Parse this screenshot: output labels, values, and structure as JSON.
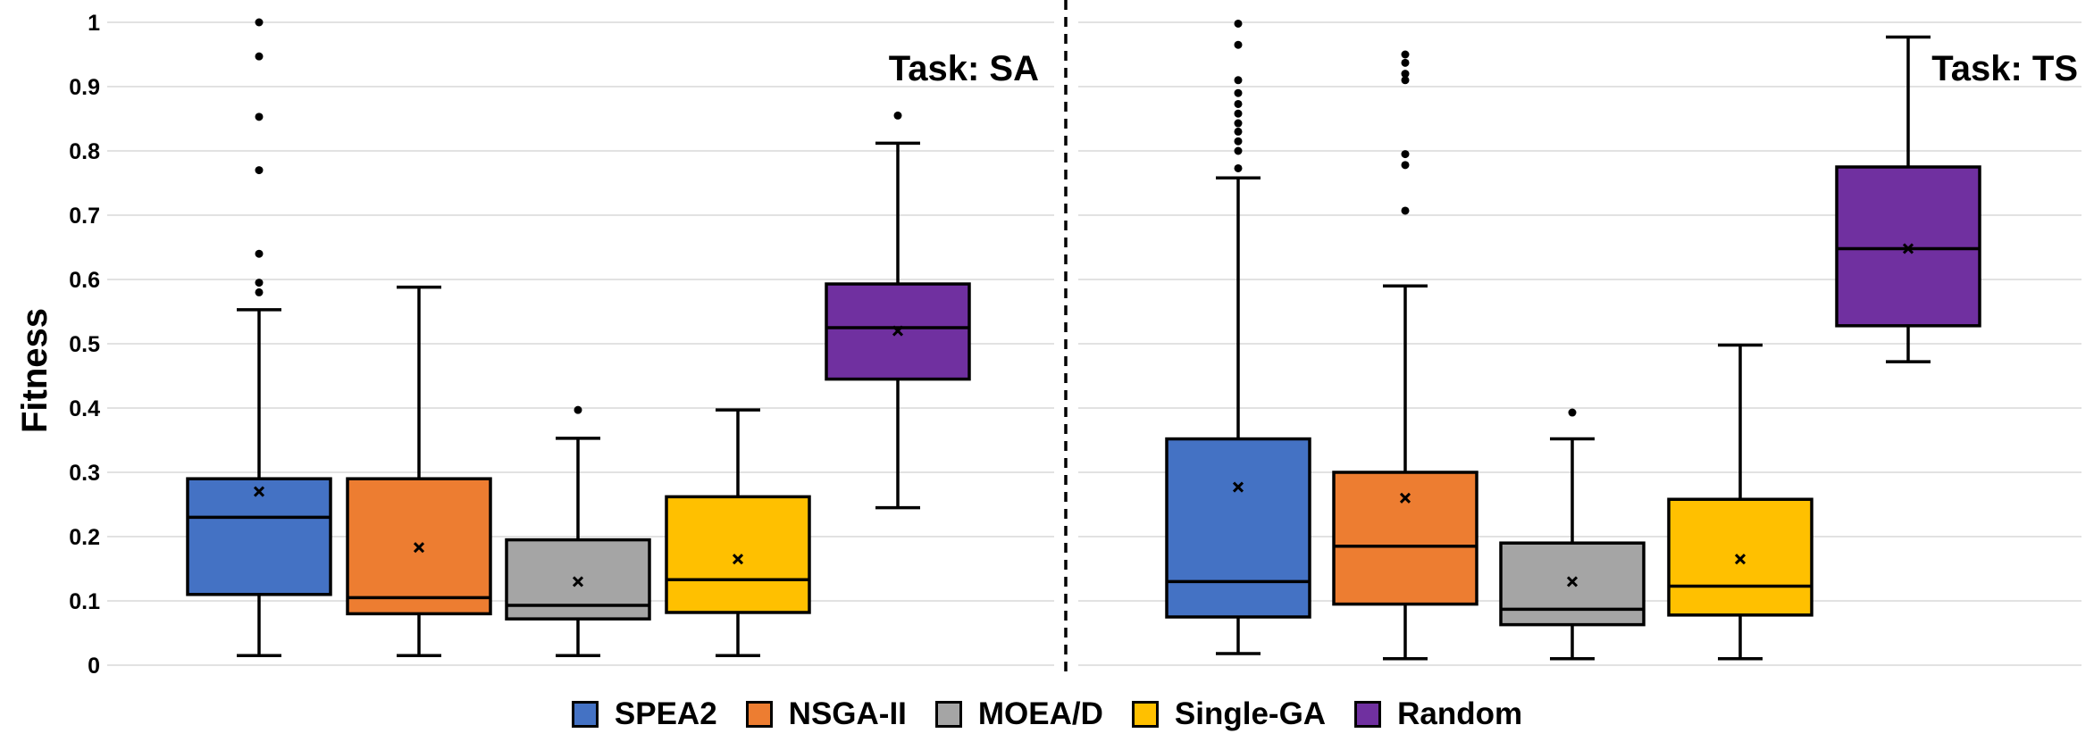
{
  "chart_data": [
    {
      "type": "box",
      "title": "Task: SA",
      "ylabel": "Fitness",
      "ylim": [
        0,
        1
      ],
      "yticks": [
        "0",
        "0.1",
        "0.2",
        "0.3",
        "0.4",
        "0.5",
        "0.6",
        "0.7",
        "0.8",
        "0.9",
        "1"
      ],
      "grid": true,
      "series": [
        {
          "name": "SPEA2",
          "color": "#4472C4",
          "whisker_low": 0.015,
          "q1": 0.11,
          "median": 0.23,
          "q3": 0.29,
          "whisker_high": 0.553,
          "mean": 0.27,
          "outliers": [
            0.58,
            0.595,
            0.64,
            0.77,
            0.853,
            0.947,
            1.0
          ]
        },
        {
          "name": "NSGA-II",
          "color": "#ED7D31",
          "whisker_low": 0.015,
          "q1": 0.08,
          "median": 0.105,
          "q3": 0.29,
          "whisker_high": 0.588,
          "mean": 0.183,
          "outliers": []
        },
        {
          "name": "MOEA/D",
          "color": "#A5A5A5",
          "whisker_low": 0.015,
          "q1": 0.072,
          "median": 0.093,
          "q3": 0.195,
          "whisker_high": 0.353,
          "mean": 0.13,
          "outliers": [
            0.397
          ]
        },
        {
          "name": "Single-GA",
          "color": "#FFC000",
          "whisker_low": 0.015,
          "q1": 0.082,
          "median": 0.133,
          "q3": 0.262,
          "whisker_high": 0.397,
          "mean": 0.165,
          "outliers": []
        },
        {
          "name": "Random",
          "color": "#7030A0",
          "whisker_low": 0.245,
          "q1": 0.445,
          "median": 0.525,
          "q3": 0.593,
          "whisker_high": 0.812,
          "mean": 0.52,
          "outliers": [
            0.855
          ]
        }
      ]
    },
    {
      "type": "box",
      "title": "Task: TS",
      "ylim": [
        0,
        1
      ],
      "grid": true,
      "series": [
        {
          "name": "SPEA2",
          "color": "#4472C4",
          "whisker_low": 0.018,
          "q1": 0.075,
          "median": 0.13,
          "q3": 0.352,
          "whisker_high": 0.758,
          "mean": 0.277,
          "outliers": [
            0.773,
            0.8,
            0.815,
            0.83,
            0.843,
            0.858,
            0.873,
            0.89,
            0.91,
            0.965,
            0.998
          ]
        },
        {
          "name": "NSGA-II",
          "color": "#ED7D31",
          "whisker_low": 0.01,
          "q1": 0.095,
          "median": 0.185,
          "q3": 0.3,
          "whisker_high": 0.59,
          "mean": 0.26,
          "outliers": [
            0.707,
            0.778,
            0.795,
            0.91,
            0.92,
            0.937,
            0.95
          ]
        },
        {
          "name": "MOEA/D",
          "color": "#A5A5A5",
          "whisker_low": 0.01,
          "q1": 0.063,
          "median": 0.087,
          "q3": 0.19,
          "whisker_high": 0.352,
          "mean": 0.13,
          "outliers": [
            0.393
          ]
        },
        {
          "name": "Single-GA",
          "color": "#FFC000",
          "whisker_low": 0.01,
          "q1": 0.078,
          "median": 0.123,
          "q3": 0.258,
          "whisker_high": 0.498,
          "mean": 0.165,
          "outliers": []
        },
        {
          "name": "Random",
          "color": "#7030A0",
          "whisker_low": 0.472,
          "q1": 0.528,
          "median": 0.648,
          "q3": 0.775,
          "whisker_high": 0.977,
          "mean": 0.648,
          "outliers": []
        }
      ]
    }
  ],
  "legend": [
    {
      "label": "SPEA2",
      "color": "#4472C4"
    },
    {
      "label": "NSGA-II",
      "color": "#ED7D31"
    },
    {
      "label": "MOEA/D",
      "color": "#A5A5A5"
    },
    {
      "label": "Single-GA",
      "color": "#FFC000"
    },
    {
      "label": "Random",
      "color": "#7030A0"
    }
  ]
}
